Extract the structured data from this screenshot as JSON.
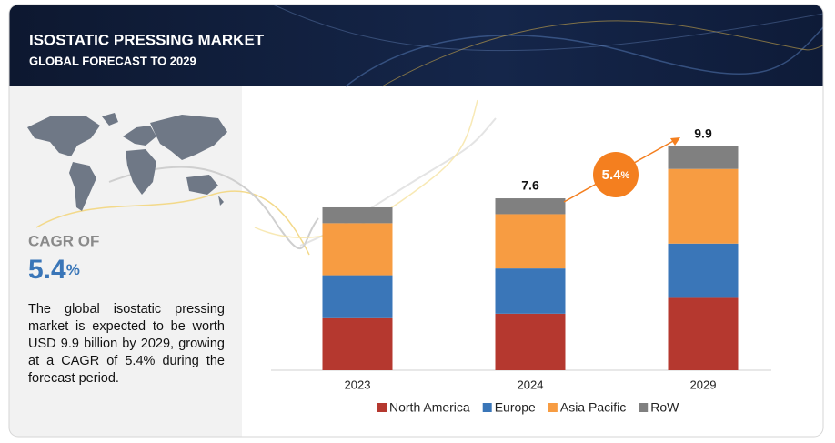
{
  "header": {
    "title": "ISOSTATIC PRESSING MARKET",
    "subtitle": "GLOBAL FORECAST TO 2029"
  },
  "summary": {
    "cagr_label": "CAGR OF",
    "cagr_value": "5.4",
    "cagr_unit": "%",
    "text": "The global isostatic pressing market is expected to be worth USD 9.9 billion by 2029, growing at a CAGR of 5.4% during the forecast period."
  },
  "chart_data": {
    "type": "bar",
    "stacked": true,
    "categories": [
      "2023",
      "2024",
      "2029"
    ],
    "series": [
      {
        "name": "North America",
        "color": "#b5382f",
        "values": [
          2.3,
          2.5,
          3.2
        ]
      },
      {
        "name": "Europe",
        "color": "#3a76b8",
        "values": [
          1.9,
          2.0,
          2.4
        ]
      },
      {
        "name": "Asia Pacific",
        "color": "#f79c42",
        "values": [
          2.3,
          2.4,
          3.3
        ]
      },
      {
        "name": "RoW",
        "color": "#808080",
        "values": [
          0.7,
          0.7,
          1.0
        ]
      }
    ],
    "total_labels": [
      null,
      7.6,
      9.9
    ],
    "ylim": [
      0,
      11
    ],
    "cagr_badge": {
      "value": "5.4",
      "unit": "%",
      "color": "#f47f1f"
    },
    "legend": "bottom"
  }
}
